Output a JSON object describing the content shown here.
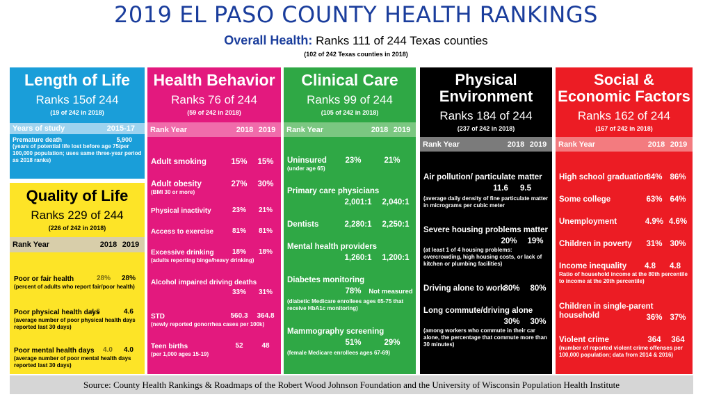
{
  "title": "2019 EL PASO COUNTY HEALTH RANKINGS",
  "overall": {
    "label": "Overall Health:",
    "text": "Ranks 111 of 244 Texas counties",
    "prev": "(102 of 242 Texas counties in 2018)"
  },
  "length_of_life": {
    "name": "Length of Life",
    "rank": "Ranks 15of 244",
    "prev": "(19 of 242 in 2018)",
    "years_label": "Years of study",
    "years_value": "2015-17",
    "premature": {
      "label": "Premature death",
      "value": "5,900",
      "note": "(years of potential life lost before age 75/per 100,000 population; uses same three-year period as 2018 ranks)"
    }
  },
  "quality_of_life": {
    "name": "Quality of Life",
    "rank": "Ranks 229 of 244",
    "prev": "(226 of 242 in 2018)",
    "col_rank": "Rank Year",
    "col_2018": "2018",
    "col_2019": "2019",
    "metrics": [
      {
        "label": "Poor or fair health",
        "note": "(percent of adults who report fair/poor health)",
        "v2018": "28%",
        "v2019": "28%"
      },
      {
        "label": "Poor physical health days",
        "note": "(average number of poor physical health days reported last 30 days)",
        "v2018": "4.6",
        "v2019": "4.6"
      },
      {
        "label": "Poor mental health days",
        "note": "(average number of poor mental health days reported last 30 days)",
        "v2018": "4.0",
        "v2019": "4.0"
      }
    ]
  },
  "health_behavior": {
    "name": "Health Behavior",
    "rank": "Ranks 76 of 244",
    "prev": "(59 of 242 in 2018)",
    "col_rank": "Rank Year",
    "col_2018": "2018",
    "col_2019": "2019",
    "metrics": [
      {
        "label": "Adult smoking",
        "note": "",
        "v2018": "15%",
        "v2019": "15%"
      },
      {
        "label": "Adult obesity",
        "note": "(BMI 30 or more)",
        "v2018": "27%",
        "v2019": "30%"
      },
      {
        "label": "Physical inactivity",
        "note": "",
        "v2018": "23%",
        "v2019": "21%"
      },
      {
        "label": "Access to exercise",
        "note": "",
        "v2018": "81%",
        "v2019": "81%"
      },
      {
        "label": "Excessive drinking",
        "note": "(adults reporting binge/heavy drinking)",
        "v2018": "18%",
        "v2019": "18%"
      },
      {
        "label": "Alcohol impaired driving deaths",
        "note": "",
        "v2018": "33%",
        "v2019": "31%"
      },
      {
        "label": "STD",
        "note": "(newly reported gonorrhea cases per 100k)",
        "v2018": "560.3",
        "v2019": "364.8"
      },
      {
        "label": "Teen births",
        "note": "(per 1,000 ages 15-19)",
        "v2018": "52",
        "v2019": "48"
      }
    ]
  },
  "clinical_care": {
    "name": "Clinical Care",
    "rank": "Ranks 99 of 244",
    "prev": "(105 of 242 in 2018)",
    "col_rank": "Rank Year",
    "col_2018": "2018",
    "col_2019": "2019",
    "metrics": [
      {
        "label": "Uninsured",
        "note": "(under age 65)",
        "v2018": "23%",
        "v2019": "21%"
      },
      {
        "label": "Primary care physicians",
        "note": "",
        "v2018": "2,001:1",
        "v2019": "2,040:1"
      },
      {
        "label": "Dentists",
        "note": "",
        "v2018": "2,280:1",
        "v2019": "2,250:1"
      },
      {
        "label": "Mental health providers",
        "note": "",
        "v2018": "1,260:1",
        "v2019": "1,200:1"
      },
      {
        "label": "Diabetes monitoring",
        "note": "(diabetic Medicare enrollees ages 65-75 that receive HbA1c monitoring)",
        "v2018": "78%",
        "v2019": "Not measured"
      },
      {
        "label": "Mammography screening",
        "note": "(female Medicare enrollees ages 67-69)",
        "v2018": "51%",
        "v2019": "29%"
      }
    ]
  },
  "physical_environment": {
    "name_line1": "Physical",
    "name_line2": "Environment",
    "rank": "Ranks 184 of 244",
    "prev": "(237 of 242 in 2018)",
    "col_rank": "Rank Year",
    "col_2018": "2018",
    "col_2019": "2019",
    "metrics": [
      {
        "label": "Air pollution/ particulate matter",
        "note": "(average daily density of fine particulate matter in micrograms per cubic meter",
        "v2018": "11.6",
        "v2019": "9.5"
      },
      {
        "label": "Severe housing problems matter",
        "note": "(at least 1 of 4 housing problems: overcrowding, high housing costs, or lack of kitchen or plumbing facilities)",
        "v2018": "20%",
        "v2019": "19%"
      },
      {
        "label": "Driving alone to work",
        "note": "",
        "v2018": "80%",
        "v2019": "80%"
      },
      {
        "label": "Long commute/driving alone",
        "note": "(among workers who commute in their car alone, the percentage that commute more than 30 minutes)",
        "v2018": "30%",
        "v2019": "30%"
      }
    ]
  },
  "social_economic": {
    "name_line1": "Social &",
    "name_line2": "Economic Factors",
    "rank": "Ranks 162 of 244",
    "prev": "(167 of 242 in 2018)",
    "col_rank": "Rank Year",
    "col_2018": "2018",
    "col_2019": "2019",
    "metrics": [
      {
        "label": "High school graduation",
        "note": "",
        "v2018": "84%",
        "v2019": "86%"
      },
      {
        "label": "Some college",
        "note": "",
        "v2018": "63%",
        "v2019": "64%"
      },
      {
        "label": "Unemployment",
        "note": "",
        "v2018": "4.9%",
        "v2019": "4.6%"
      },
      {
        "label": "Children in poverty",
        "note": "",
        "v2018": "31%",
        "v2019": "30%"
      },
      {
        "label": "Income inequality",
        "note": "Ratio of household income at the 80th percentile to income at the 20th percentile)",
        "v2018": "4.8",
        "v2019": "4.8"
      },
      {
        "label": "Children in single-parent household",
        "note": "",
        "v2018": "36%",
        "v2019": "37%"
      },
      {
        "label": "Violent crime",
        "note": "(number of reported violent crime offenses per 100,000 population; data from 2014 & 2016)",
        "v2018": "364",
        "v2019": "364"
      }
    ]
  },
  "source": "Source: County Health Rankings & Roadmaps of the Robert Wood Johnson Foundation and the University of Wisconsin Population Health Institute",
  "colors": {
    "title": "#1a3d9c",
    "length_of_life": "#1a9ed9",
    "quality_of_life": "#fde427",
    "health_behavior": "#e3197e",
    "clinical_care": "#2fa845",
    "physical_environment": "#000000",
    "social_economic": "#ec1c24"
  }
}
